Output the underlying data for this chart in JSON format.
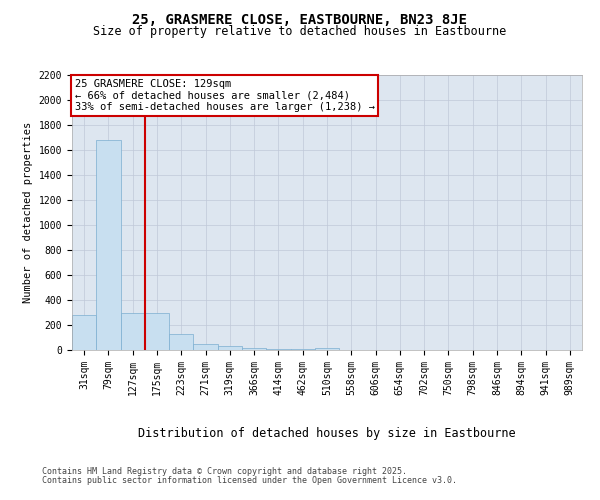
{
  "title": "25, GRASMERE CLOSE, EASTBOURNE, BN23 8JE",
  "subtitle": "Size of property relative to detached houses in Eastbourne",
  "xlabel": "Distribution of detached houses by size in Eastbourne",
  "ylabel": "Number of detached properties",
  "bar_color": "#c8dff0",
  "bar_edge_color": "#7badd0",
  "grid_color": "#c0c8d8",
  "background_color": "#dde6f0",
  "vline_color": "#cc0000",
  "annotation_text": "25 GRASMERE CLOSE: 129sqm\n← 66% of detached houses are smaller (2,484)\n33% of semi-detached houses are larger (1,238) →",
  "annotation_box_color": "#cc0000",
  "categories": [
    "31sqm",
    "79sqm",
    "127sqm",
    "175sqm",
    "223sqm",
    "271sqm",
    "319sqm",
    "366sqm",
    "414sqm",
    "462sqm",
    "510sqm",
    "558sqm",
    "606sqm",
    "654sqm",
    "702sqm",
    "750sqm",
    "798sqm",
    "846sqm",
    "894sqm",
    "941sqm",
    "989sqm"
  ],
  "values": [
    280,
    1680,
    300,
    300,
    130,
    50,
    30,
    20,
    10,
    5,
    20,
    0,
    0,
    0,
    0,
    0,
    0,
    0,
    0,
    0,
    0
  ],
  "ylim": [
    0,
    2200
  ],
  "yticks": [
    0,
    200,
    400,
    600,
    800,
    1000,
    1200,
    1400,
    1600,
    1800,
    2000,
    2200
  ],
  "footer_line1": "Contains HM Land Registry data © Crown copyright and database right 2025.",
  "footer_line2": "Contains public sector information licensed under the Open Government Licence v3.0.",
  "title_fontsize": 10,
  "subtitle_fontsize": 8.5,
  "xlabel_fontsize": 8.5,
  "ylabel_fontsize": 7.5,
  "tick_fontsize": 7,
  "footer_fontsize": 6,
  "annot_fontsize": 7.5
}
